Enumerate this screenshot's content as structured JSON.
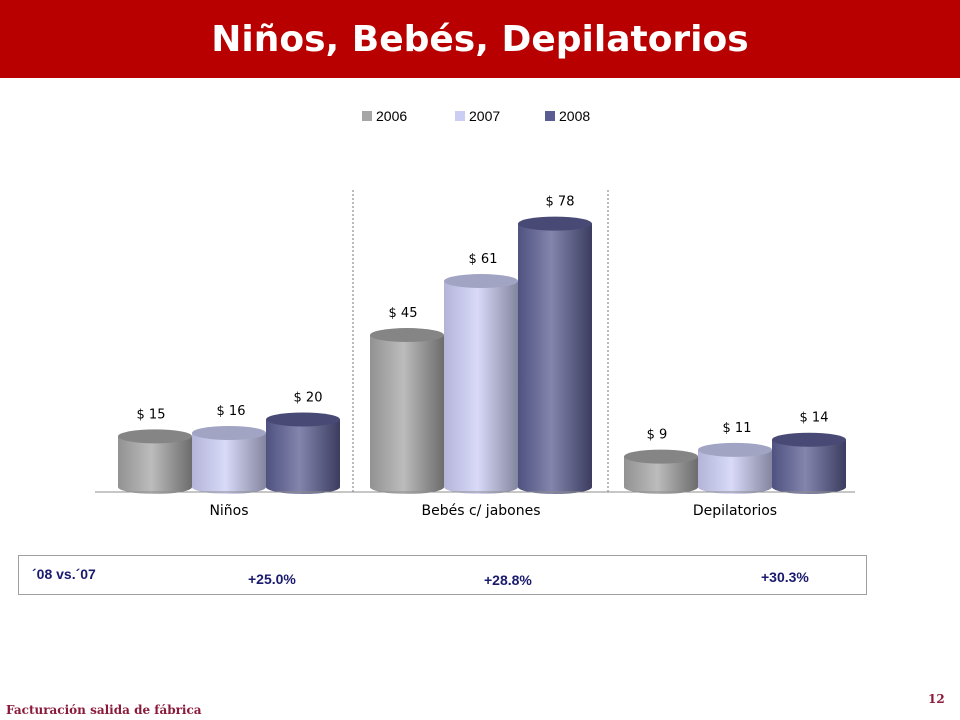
{
  "header": {
    "title": "Niños, Bebés, Depilatorios"
  },
  "chart_data": {
    "type": "bar",
    "categories": [
      "Niños",
      "Bebés c/ jabones",
      "Depilatorios"
    ],
    "series": [
      {
        "name": "2006",
        "values": [
          15,
          45,
          9
        ],
        "labels": [
          "$ 15",
          "$ 45",
          "$ 9"
        ],
        "color": "#a6a6a6"
      },
      {
        "name": "2007",
        "values": [
          16,
          61,
          11
        ],
        "labels": [
          "$ 16",
          "$ 61",
          "$ 11"
        ],
        "color": "#cbcdf5"
      },
      {
        "name": "2008",
        "values": [
          20,
          78,
          14
        ],
        "labels": [
          "$ 20",
          "$ 78",
          "$ 14"
        ],
        "color": "#5a5c92"
      }
    ],
    "ylim": [
      0,
      85
    ],
    "legend_position": "top-center",
    "grid": false,
    "category_separators": "dotted"
  },
  "comparison": {
    "label": "´08 vs.´07",
    "values": [
      "+25.0%",
      "+28.8%",
      "+30.3%"
    ]
  },
  "footer": {
    "source": "Facturación salida de fábrica",
    "page_number": "12"
  }
}
